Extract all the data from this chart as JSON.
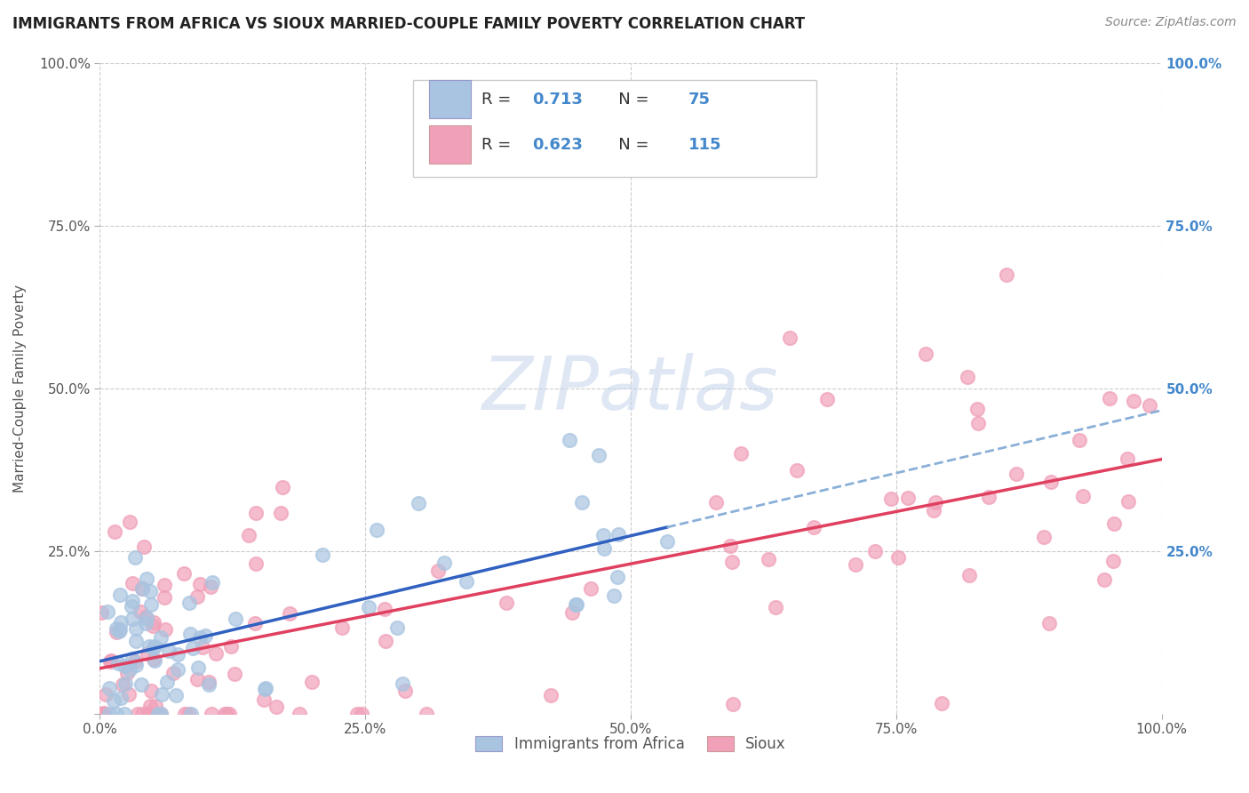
{
  "title": "IMMIGRANTS FROM AFRICA VS SIOUX MARRIED-COUPLE FAMILY POVERTY CORRELATION CHART",
  "source": "Source: ZipAtlas.com",
  "ylabel": "Married-Couple Family Poverty",
  "xlim": [
    0,
    1.0
  ],
  "ylim": [
    0,
    1.0
  ],
  "xticks": [
    0.0,
    0.25,
    0.5,
    0.75,
    1.0
  ],
  "yticks": [
    0.0,
    0.25,
    0.5,
    0.75,
    1.0
  ],
  "xtick_labels": [
    "0.0%",
    "25.0%",
    "50.0%",
    "75.0%",
    "100.0%"
  ],
  "ytick_labels": [
    "",
    "25.0%",
    "50.0%",
    "75.0%",
    "100.0%"
  ],
  "right_ytick_labels": [
    "25.0%",
    "50.0%",
    "75.0%",
    "100.0%"
  ],
  "background_color": "#ffffff",
  "blue_color": "#a8c4e0",
  "pink_color": "#f0a0b8",
  "blue_line_color": "#3060c0",
  "pink_line_color": "#e04060",
  "blue_R": 0.713,
  "blue_N": 75,
  "pink_R": 0.623,
  "pink_N": 115,
  "legend_R_N_color": "#4488cc",
  "legend_text_color": "#333333",
  "right_axis_color": "#4488cc"
}
